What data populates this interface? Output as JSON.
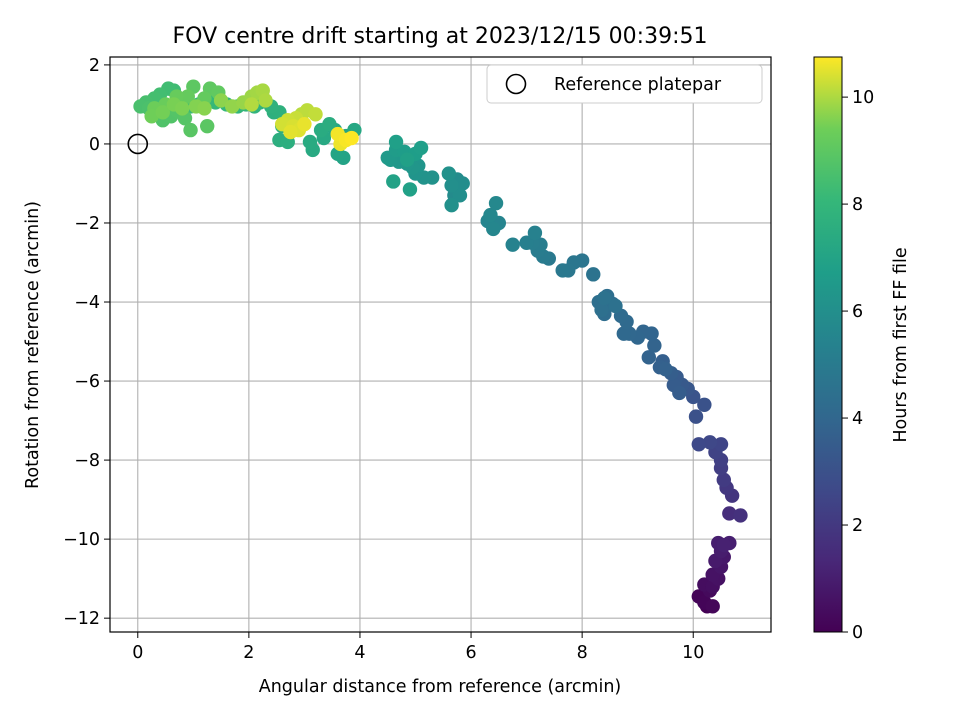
{
  "chart_data": {
    "type": "scatter",
    "title": "FOV centre drift starting at 2023/12/15 00:39:51",
    "xlabel": "Angular distance from reference (arcmin)",
    "ylabel": "Rotation from reference (arcmin)",
    "xlim": [
      -0.5,
      11.4
    ],
    "ylim": [
      -12.35,
      2.2
    ],
    "xticks": [
      0,
      2,
      4,
      6,
      8,
      10
    ],
    "yticks": [
      2,
      0,
      -2,
      -4,
      -6,
      -8,
      -10,
      -12
    ],
    "grid": true,
    "legend": {
      "position": "top-right",
      "entries": [
        "Reference platepar"
      ]
    },
    "reference_point": {
      "x": 0,
      "y": 0,
      "marker": "open-circle"
    },
    "colorbar": {
      "label": "Hours from first FF file",
      "colormap": "viridis",
      "range": [
        0,
        10.75
      ],
      "ticks": [
        0,
        2,
        4,
        6,
        8,
        10
      ]
    },
    "points_x_y_hours": [
      [
        10.25,
        -11.7,
        0.0
      ],
      [
        10.1,
        -11.45,
        0.1
      ],
      [
        10.2,
        -11.6,
        0.15
      ],
      [
        10.35,
        -11.7,
        0.2
      ],
      [
        10.3,
        -11.3,
        0.3
      ],
      [
        10.2,
        -11.15,
        0.4
      ],
      [
        10.35,
        -11.2,
        0.45
      ],
      [
        10.45,
        -11.0,
        0.55
      ],
      [
        10.35,
        -10.9,
        0.6
      ],
      [
        10.5,
        -10.7,
        0.7
      ],
      [
        10.55,
        -10.45,
        0.8
      ],
      [
        10.4,
        -10.55,
        0.85
      ],
      [
        10.5,
        -10.3,
        0.95
      ],
      [
        10.45,
        -10.1,
        1.0
      ],
      [
        10.65,
        -10.1,
        1.05
      ],
      [
        10.55,
        -10.15,
        1.1
      ],
      [
        10.65,
        -9.35,
        1.6
      ],
      [
        10.85,
        -9.4,
        1.7
      ],
      [
        10.7,
        -8.9,
        1.85
      ],
      [
        10.6,
        -8.7,
        1.95
      ],
      [
        10.55,
        -8.5,
        2.1
      ],
      [
        10.5,
        -8.2,
        2.2
      ],
      [
        10.5,
        -8.0,
        2.3
      ],
      [
        10.4,
        -7.8,
        2.4
      ],
      [
        10.5,
        -7.6,
        2.5
      ],
      [
        10.3,
        -7.55,
        2.6
      ],
      [
        10.1,
        -7.6,
        2.65
      ],
      [
        10.05,
        -6.9,
        3.0
      ],
      [
        10.2,
        -6.6,
        3.05
      ],
      [
        10.0,
        -6.4,
        3.15
      ],
      [
        9.9,
        -6.2,
        3.25
      ],
      [
        9.8,
        -6.1,
        3.35
      ],
      [
        9.7,
        -5.9,
        3.45
      ],
      [
        9.65,
        -6.1,
        3.5
      ],
      [
        9.75,
        -6.3,
        3.55
      ],
      [
        9.6,
        -5.8,
        3.6
      ],
      [
        9.45,
        -5.5,
        3.65
      ],
      [
        9.4,
        -5.65,
        3.7
      ],
      [
        9.5,
        -5.7,
        3.75
      ],
      [
        9.2,
        -5.4,
        3.8
      ],
      [
        9.3,
        -5.1,
        3.85
      ],
      [
        9.25,
        -4.8,
        3.9
      ],
      [
        9.1,
        -4.75,
        3.95
      ],
      [
        9.0,
        -4.9,
        4.0
      ],
      [
        8.85,
        -4.8,
        4.05
      ],
      [
        8.75,
        -4.8,
        4.1
      ],
      [
        8.8,
        -4.5,
        4.15
      ],
      [
        8.7,
        -4.35,
        4.2
      ],
      [
        8.55,
        -4.05,
        4.25
      ],
      [
        8.4,
        -4.3,
        4.3
      ],
      [
        8.45,
        -3.85,
        4.35
      ],
      [
        8.3,
        -4.0,
        4.4
      ],
      [
        8.35,
        -4.2,
        4.45
      ],
      [
        8.6,
        -4.1,
        4.5
      ],
      [
        8.4,
        -3.9,
        4.55
      ],
      [
        8.2,
        -3.3,
        4.6
      ],
      [
        8.0,
        -2.95,
        4.7
      ],
      [
        7.85,
        -3.0,
        4.75
      ],
      [
        7.75,
        -3.2,
        4.8
      ],
      [
        7.65,
        -3.2,
        4.85
      ],
      [
        7.4,
        -2.9,
        4.9
      ],
      [
        7.3,
        -2.85,
        5.0
      ],
      [
        7.2,
        -2.7,
        5.05
      ],
      [
        7.25,
        -2.55,
        5.1
      ],
      [
        7.1,
        -2.5,
        5.15
      ],
      [
        7.0,
        -2.5,
        5.2
      ],
      [
        7.15,
        -2.25,
        5.3
      ],
      [
        6.75,
        -2.55,
        5.35
      ],
      [
        6.5,
        -2.0,
        5.45
      ],
      [
        6.3,
        -1.95,
        5.5
      ],
      [
        6.4,
        -2.15,
        5.55
      ],
      [
        6.35,
        -1.8,
        5.6
      ],
      [
        6.45,
        -1.5,
        5.65
      ],
      [
        5.7,
        -1.3,
        5.8
      ],
      [
        5.75,
        -0.9,
        5.85
      ],
      [
        5.85,
        -1.0,
        5.9
      ],
      [
        5.8,
        -1.3,
        5.95
      ],
      [
        5.65,
        -1.05,
        6.0
      ],
      [
        5.65,
        -1.55,
        6.05
      ],
      [
        5.6,
        -0.75,
        6.1
      ],
      [
        5.3,
        -0.85,
        6.15
      ],
      [
        5.15,
        -0.85,
        6.2
      ],
      [
        5.0,
        -0.75,
        6.25
      ],
      [
        5.05,
        -0.55,
        6.3
      ],
      [
        4.95,
        -0.6,
        6.35
      ],
      [
        4.85,
        -0.5,
        6.4
      ],
      [
        4.7,
        -0.45,
        6.45
      ],
      [
        4.55,
        -0.4,
        6.5
      ],
      [
        4.5,
        -0.35,
        6.55
      ],
      [
        4.65,
        -0.15,
        6.6
      ],
      [
        4.8,
        -0.2,
        6.65
      ],
      [
        5.0,
        -0.25,
        6.7
      ],
      [
        5.1,
        -0.1,
        6.75
      ],
      [
        4.65,
        0.05,
        6.8
      ],
      [
        4.85,
        -0.4,
        6.85
      ],
      [
        4.9,
        -1.15,
        6.9
      ],
      [
        4.6,
        -0.95,
        6.95
      ],
      [
        3.7,
        -0.35,
        7.0
      ],
      [
        3.6,
        -0.25,
        7.05
      ],
      [
        3.75,
        0.2,
        7.1
      ],
      [
        3.55,
        0.35,
        7.15
      ],
      [
        3.9,
        0.35,
        7.2
      ],
      [
        3.35,
        0.15,
        7.25
      ],
      [
        3.15,
        -0.15,
        7.3
      ],
      [
        3.1,
        0.05,
        7.35
      ],
      [
        3.3,
        0.35,
        7.4
      ],
      [
        3.45,
        0.5,
        7.45
      ],
      [
        2.6,
        0.45,
        7.5
      ],
      [
        2.55,
        0.1,
        7.55
      ],
      [
        2.7,
        0.05,
        7.6
      ],
      [
        2.45,
        0.8,
        7.65
      ],
      [
        2.55,
        0.8,
        7.7
      ],
      [
        2.4,
        0.95,
        7.75
      ],
      [
        2.2,
        1.05,
        7.8
      ],
      [
        2.1,
        0.95,
        7.85
      ],
      [
        1.95,
        1.0,
        7.9
      ],
      [
        1.8,
        0.95,
        7.95
      ],
      [
        1.6,
        1.0,
        8.0
      ],
      [
        1.4,
        1.05,
        8.05
      ],
      [
        1.25,
        1.1,
        8.1
      ],
      [
        1.1,
        1.0,
        8.15
      ],
      [
        0.95,
        0.95,
        8.2
      ],
      [
        0.8,
        1.05,
        8.25
      ],
      [
        0.65,
        1.35,
        8.3
      ],
      [
        0.55,
        1.4,
        8.35
      ],
      [
        0.4,
        1.25,
        8.4
      ],
      [
        0.3,
        1.15,
        8.45
      ],
      [
        0.15,
        1.05,
        8.5
      ],
      [
        0.05,
        0.95,
        8.55
      ],
      [
        0.2,
        0.9,
        8.6
      ],
      [
        0.35,
        0.75,
        8.65
      ],
      [
        0.45,
        0.6,
        8.7
      ],
      [
        0.6,
        0.7,
        8.75
      ],
      [
        0.7,
        0.85,
        8.8
      ],
      [
        0.85,
        0.65,
        8.85
      ],
      [
        0.95,
        0.35,
        8.9
      ],
      [
        1.25,
        0.45,
        8.95
      ],
      [
        1.0,
        1.45,
        9.0
      ],
      [
        1.3,
        1.4,
        9.05
      ],
      [
        1.45,
        1.3,
        9.1
      ],
      [
        1.2,
        1.15,
        9.15
      ],
      [
        0.9,
        1.2,
        9.2
      ],
      [
        0.7,
        1.2,
        9.25
      ],
      [
        0.5,
        1.0,
        9.3
      ],
      [
        0.3,
        0.9,
        9.35
      ],
      [
        0.25,
        0.7,
        9.4
      ],
      [
        0.45,
        0.8,
        9.45
      ],
      [
        0.65,
        1.0,
        9.5
      ],
      [
        0.8,
        0.9,
        9.55
      ],
      [
        1.05,
        0.95,
        9.6
      ],
      [
        1.2,
        0.9,
        9.65
      ],
      [
        1.5,
        1.1,
        9.7
      ],
      [
        1.7,
        0.95,
        9.75
      ],
      [
        1.9,
        1.05,
        9.8
      ],
      [
        2.05,
        1.2,
        9.85
      ],
      [
        2.15,
        1.3,
        9.9
      ],
      [
        2.25,
        1.35,
        9.95
      ],
      [
        2.3,
        1.1,
        10.0
      ],
      [
        2.05,
        1.0,
        10.05
      ],
      [
        2.95,
        0.75,
        10.1
      ],
      [
        3.05,
        0.85,
        10.15
      ],
      [
        3.2,
        0.75,
        10.2
      ],
      [
        2.85,
        0.65,
        10.25
      ],
      [
        2.7,
        0.6,
        10.3
      ],
      [
        2.6,
        0.5,
        10.35
      ],
      [
        2.8,
        0.45,
        10.4
      ],
      [
        2.9,
        0.35,
        10.45
      ],
      [
        2.75,
        0.3,
        10.5
      ],
      [
        3.0,
        0.5,
        10.55
      ],
      [
        3.65,
        0.0,
        10.6
      ],
      [
        3.6,
        0.25,
        10.65
      ],
      [
        3.75,
        0.1,
        10.7
      ],
      [
        3.85,
        0.15,
        10.75
      ]
    ]
  }
}
